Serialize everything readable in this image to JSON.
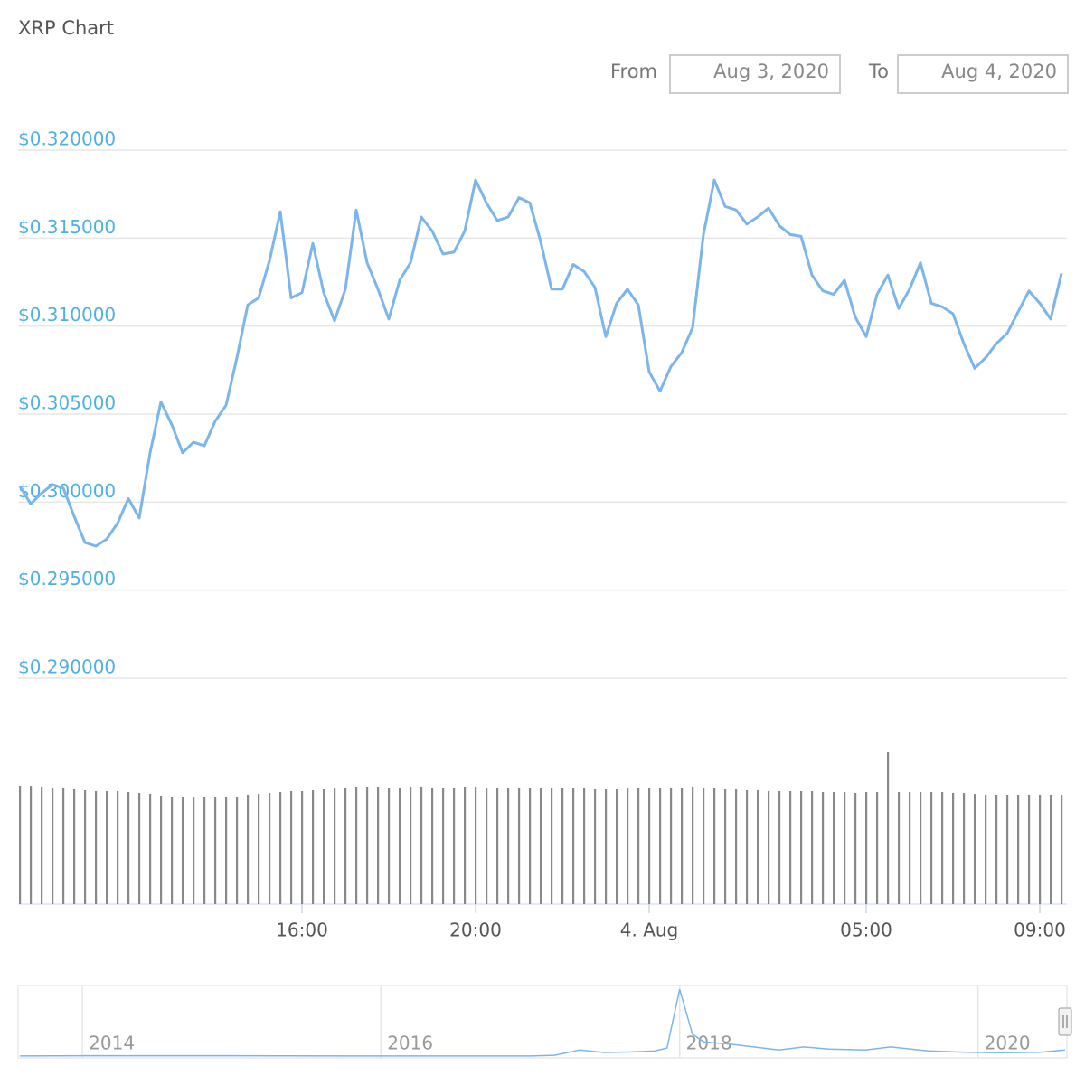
{
  "range_selector": {
    "from_label": "From",
    "from": "Aug 3, 2020",
    "to_label": "To",
    "to": "Aug 4, 2020"
  },
  "chart_data": {
    "type": "line",
    "title": "XRP Chart",
    "color": "#7cb5ec",
    "grid": true,
    "x": [
      "2020-08-03T09:30",
      "2020-08-03T09:45",
      "2020-08-03T10:00",
      "2020-08-03T10:15",
      "2020-08-03T10:30",
      "2020-08-03T10:45",
      "2020-08-03T11:00",
      "2020-08-03T11:15",
      "2020-08-03T11:30",
      "2020-08-03T11:45",
      "2020-08-03T12:00",
      "2020-08-03T12:15",
      "2020-08-03T12:30",
      "2020-08-03T12:45",
      "2020-08-03T13:00",
      "2020-08-03T13:15",
      "2020-08-03T13:30",
      "2020-08-03T13:45",
      "2020-08-03T14:00",
      "2020-08-03T14:15",
      "2020-08-03T14:30",
      "2020-08-03T14:45",
      "2020-08-03T15:00",
      "2020-08-03T15:15",
      "2020-08-03T15:30",
      "2020-08-03T15:45",
      "2020-08-03T16:00",
      "2020-08-03T16:15",
      "2020-08-03T16:30",
      "2020-08-03T16:45",
      "2020-08-03T17:00",
      "2020-08-03T17:15",
      "2020-08-03T17:30",
      "2020-08-03T17:45",
      "2020-08-03T18:00",
      "2020-08-03T18:15",
      "2020-08-03T18:30",
      "2020-08-03T18:45",
      "2020-08-03T19:00",
      "2020-08-03T19:15",
      "2020-08-03T19:30",
      "2020-08-03T19:45",
      "2020-08-03T20:00",
      "2020-08-03T20:15",
      "2020-08-03T20:30",
      "2020-08-03T20:45",
      "2020-08-03T21:00",
      "2020-08-03T21:15",
      "2020-08-03T21:30",
      "2020-08-03T21:45",
      "2020-08-03T22:00",
      "2020-08-03T22:15",
      "2020-08-03T22:30",
      "2020-08-03T22:45",
      "2020-08-03T23:00",
      "2020-08-03T23:15",
      "2020-08-03T23:30",
      "2020-08-03T23:45",
      "2020-08-04T00:00",
      "2020-08-04T00:15",
      "2020-08-04T00:30",
      "2020-08-04T00:45",
      "2020-08-04T01:00",
      "2020-08-04T01:15",
      "2020-08-04T01:30",
      "2020-08-04T01:45",
      "2020-08-04T02:00",
      "2020-08-04T02:15",
      "2020-08-04T02:30",
      "2020-08-04T02:45",
      "2020-08-04T03:00",
      "2020-08-04T03:15",
      "2020-08-04T03:30",
      "2020-08-04T03:45",
      "2020-08-04T04:00",
      "2020-08-04T04:15",
      "2020-08-04T04:30",
      "2020-08-04T04:45",
      "2020-08-04T05:00",
      "2020-08-04T05:15",
      "2020-08-04T05:30",
      "2020-08-04T05:45",
      "2020-08-04T06:00",
      "2020-08-04T06:15",
      "2020-08-04T06:30",
      "2020-08-04T06:45",
      "2020-08-04T07:00",
      "2020-08-04T07:15",
      "2020-08-04T07:30",
      "2020-08-04T07:45",
      "2020-08-04T08:00",
      "2020-08-04T08:15",
      "2020-08-04T08:30",
      "2020-08-04T08:45",
      "2020-08-04T09:00",
      "2020-08-04T09:15",
      "2020-08-04T09:30"
    ],
    "values": [
      0.3009,
      0.2999,
      0.3005,
      0.301,
      0.3008,
      0.2992,
      0.2977,
      0.2975,
      0.2979,
      0.2988,
      0.3002,
      0.2991,
      0.3028,
      0.3057,
      0.3044,
      0.3028,
      0.3034,
      0.3032,
      0.3046,
      0.3055,
      0.3082,
      0.3112,
      0.3116,
      0.3137,
      0.3165,
      0.3116,
      0.3119,
      0.3147,
      0.3119,
      0.3103,
      0.3121,
      0.3166,
      0.3136,
      0.3121,
      0.3104,
      0.3126,
      0.3136,
      0.3162,
      0.3154,
      0.3141,
      0.3142,
      0.3154,
      0.3183,
      0.317,
      0.316,
      0.3162,
      0.3173,
      0.317,
      0.3148,
      0.3121,
      0.3121,
      0.3135,
      0.3131,
      0.3122,
      0.3094,
      0.3113,
      0.3121,
      0.3112,
      0.3074,
      0.3063,
      0.3077,
      0.3085,
      0.3099,
      0.3152,
      0.3183,
      0.3168,
      0.3166,
      0.3158,
      0.3162,
      0.3167,
      0.3157,
      0.3152,
      0.3151,
      0.3129,
      0.312,
      0.3118,
      0.3126,
      0.3105,
      0.3094,
      0.3118,
      0.3129,
      0.311,
      0.3121,
      0.3136,
      0.3113,
      0.3111,
      0.3107,
      0.309,
      0.3076,
      0.3082,
      0.309,
      0.3096,
      0.3108,
      0.312,
      0.3113,
      0.3104,
      0.313
    ],
    "xlim": [
      "2020-08-03T09:30",
      "2020-08-04T09:35"
    ],
    "xticks": [
      {
        "value": "2020-08-03T16:00",
        "label": "16:00"
      },
      {
        "value": "2020-08-03T20:00",
        "label": "20:00"
      },
      {
        "value": "2020-08-04T00:00",
        "label": "4. Aug"
      },
      {
        "value": "2020-08-04T05:00",
        "label": "05:00"
      },
      {
        "value": "2020-08-04T09:00",
        "label": "09:00"
      }
    ],
    "ylim": [
      0.29,
      0.32
    ],
    "yticks": [
      {
        "value": 0.32,
        "label": "$0.320000"
      },
      {
        "value": 0.315,
        "label": "$0.315000"
      },
      {
        "value": 0.31,
        "label": "$0.310000"
      },
      {
        "value": 0.305,
        "label": "$0.305000"
      },
      {
        "value": 0.3,
        "label": "$0.300000"
      },
      {
        "value": 0.295,
        "label": "$0.295000"
      },
      {
        "value": 0.29,
        "label": "$0.290000"
      }
    ],
    "volume": {
      "color": "#888888",
      "ylim": [
        0,
        170
      ],
      "values": [
        131,
        131,
        130,
        129,
        128,
        127,
        126,
        125,
        125,
        125,
        124,
        123,
        122,
        120,
        119,
        118,
        118,
        118,
        118,
        118,
        119,
        121,
        122,
        123,
        124,
        125,
        125,
        126,
        127,
        128,
        129,
        130,
        130,
        130,
        129,
        129,
        130,
        130,
        129,
        129,
        129,
        130,
        130,
        129,
        129,
        128,
        128,
        128,
        128,
        128,
        128,
        128,
        128,
        127,
        127,
        127,
        128,
        128,
        128,
        128,
        128,
        129,
        130,
        128,
        128,
        127,
        127,
        126,
        126,
        125,
        125,
        125,
        125,
        125,
        124,
        124,
        124,
        123,
        124,
        124,
        168,
        124,
        124,
        124,
        124,
        124,
        123,
        123,
        122,
        121,
        121,
        121,
        121,
        121,
        121,
        121,
        121
      ]
    },
    "navigator": {
      "color": "#7cb5ec",
      "xlim": [
        "2013-08",
        "2020-08"
      ],
      "ylim": [
        0,
        3.4
      ],
      "x": [
        "2013-08",
        "2014-01",
        "2015-01",
        "2016-01",
        "2017-01",
        "2017-03",
        "2017-05",
        "2017-07",
        "2017-09",
        "2017-11",
        "2017-12",
        "2018-01",
        "2018-02",
        "2018-03",
        "2018-05",
        "2018-07",
        "2018-09",
        "2018-11",
        "2019-01",
        "2019-04",
        "2019-06",
        "2019-09",
        "2019-12",
        "2020-03",
        "2020-06",
        "2020-08"
      ],
      "values": [
        0.005,
        0.02,
        0.02,
        0.006,
        0.006,
        0.04,
        0.3,
        0.18,
        0.2,
        0.25,
        0.4,
        3.3,
        1.1,
        0.7,
        0.6,
        0.45,
        0.3,
        0.45,
        0.35,
        0.3,
        0.45,
        0.26,
        0.19,
        0.17,
        0.19,
        0.3
      ],
      "xticks": [
        {
          "value": "2014-01",
          "label": "2014"
        },
        {
          "value": "2016-01",
          "label": "2016"
        },
        {
          "value": "2018-01",
          "label": "2018"
        },
        {
          "value": "2020-01",
          "label": "2020"
        }
      ]
    }
  }
}
